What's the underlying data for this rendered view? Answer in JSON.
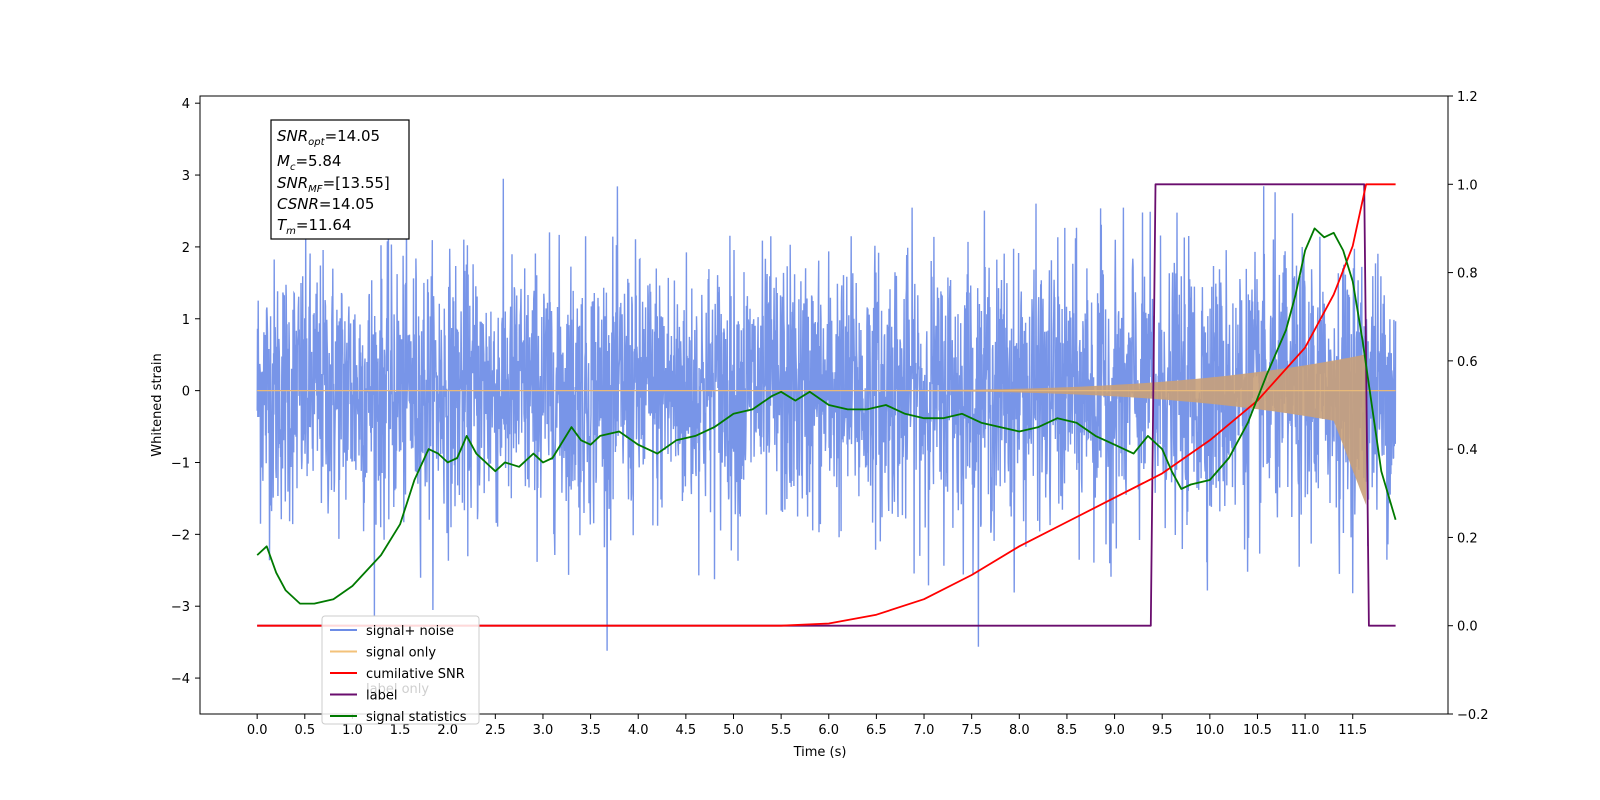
{
  "chart_data": {
    "type": "line",
    "xlabel": "Time (s)",
    "ylabel": "Whitened strain",
    "x_ticks": [
      "0.0",
      "0.5",
      "1.0",
      "1.5",
      "2.0",
      "2.5",
      "3.0",
      "3.5",
      "4.0",
      "4.5",
      "5.0",
      "5.5",
      "6.0",
      "6.5",
      "7.0",
      "7.5",
      "8.0",
      "8.5",
      "9.0",
      "9.5",
      "10.0",
      "10.5",
      "11.0",
      "11.5"
    ],
    "y_ticks": [
      "4",
      "3",
      "2",
      "1",
      "0",
      "−1",
      "−2",
      "−3",
      "−4"
    ],
    "y2_ticks": [
      "1.2",
      "1.0",
      "0.8",
      "0.6",
      "0.4",
      "0.2",
      "0.0",
      "−0.2"
    ],
    "xlim": [
      -0.6,
      12.5
    ],
    "ylim": [
      -4.5,
      4.1
    ],
    "y2lim": [
      -0.2,
      1.2
    ],
    "annotation": {
      "snr_opt": "=14.05",
      "mc": "=5.84",
      "snr_mf": "=[13.55]",
      "csnr": "=14.05",
      "tm": "=11.64"
    },
    "legend": {
      "position": "lower-left",
      "items": [
        {
          "label": "signal+ noise",
          "color": "#6d8ce6"
        },
        {
          "label": "signal only",
          "color": "#f3c27a"
        },
        {
          "label": "cumilative SNR",
          "color": "#ff0000"
        },
        {
          "label": "label",
          "color": "#6a0d6e"
        },
        {
          "label": "signal statistics",
          "color": "#007a00"
        }
      ],
      "ghost_text": "label only"
    },
    "colors": {
      "noise": "#6d8ce6",
      "signal": "#c8a07a",
      "cum_snr": "#ff0000",
      "label": "#6a0d6e",
      "stats": "#007a00"
    },
    "series": [
      {
        "name": "label",
        "axis": "right",
        "x": [
          0.0,
          9.38,
          9.43,
          11.62,
          11.67,
          11.95
        ],
        "y": [
          0.0,
          0.0,
          1.0,
          1.0,
          0.0,
          0.0
        ]
      },
      {
        "name": "cumilative SNR",
        "axis": "right",
        "x": [
          0.0,
          5.5,
          6.0,
          6.5,
          7.0,
          7.5,
          8.0,
          8.5,
          9.0,
          9.5,
          10.0,
          10.5,
          11.0,
          11.3,
          11.5,
          11.64,
          11.95
        ],
        "y": [
          0.0,
          0.0,
          0.005,
          0.025,
          0.06,
          0.115,
          0.18,
          0.235,
          0.29,
          0.345,
          0.42,
          0.51,
          0.63,
          0.75,
          0.86,
          1.0,
          1.0
        ]
      },
      {
        "name": "signal statistics",
        "axis": "right",
        "x": [
          0.0,
          0.1,
          0.2,
          0.3,
          0.45,
          0.6,
          0.8,
          1.0,
          1.3,
          1.5,
          1.65,
          1.8,
          1.9,
          2.0,
          2.1,
          2.2,
          2.3,
          2.5,
          2.6,
          2.75,
          2.9,
          3.0,
          3.1,
          3.3,
          3.4,
          3.5,
          3.6,
          3.8,
          4.0,
          4.2,
          4.4,
          4.6,
          4.8,
          5.0,
          5.2,
          5.4,
          5.5,
          5.65,
          5.8,
          6.0,
          6.2,
          6.4,
          6.6,
          6.8,
          7.0,
          7.2,
          7.4,
          7.6,
          7.8,
          8.0,
          8.2,
          8.4,
          8.6,
          8.8,
          9.0,
          9.2,
          9.35,
          9.5,
          9.6,
          9.7,
          9.8,
          10.0,
          10.2,
          10.4,
          10.6,
          10.8,
          10.9,
          11.0,
          11.1,
          11.2,
          11.3,
          11.4,
          11.5,
          11.6,
          11.7,
          11.8,
          11.95
        ],
        "y": [
          0.16,
          0.18,
          0.12,
          0.08,
          0.05,
          0.05,
          0.06,
          0.09,
          0.16,
          0.23,
          0.33,
          0.4,
          0.39,
          0.37,
          0.38,
          0.43,
          0.39,
          0.35,
          0.37,
          0.36,
          0.39,
          0.37,
          0.38,
          0.45,
          0.42,
          0.41,
          0.43,
          0.44,
          0.41,
          0.39,
          0.42,
          0.43,
          0.45,
          0.48,
          0.49,
          0.52,
          0.53,
          0.51,
          0.53,
          0.5,
          0.49,
          0.49,
          0.5,
          0.48,
          0.47,
          0.47,
          0.48,
          0.46,
          0.45,
          0.44,
          0.45,
          0.47,
          0.46,
          0.43,
          0.41,
          0.39,
          0.43,
          0.4,
          0.35,
          0.31,
          0.32,
          0.33,
          0.38,
          0.46,
          0.57,
          0.67,
          0.75,
          0.85,
          0.9,
          0.88,
          0.89,
          0.85,
          0.78,
          0.65,
          0.5,
          0.35,
          0.24
        ]
      }
    ]
  }
}
